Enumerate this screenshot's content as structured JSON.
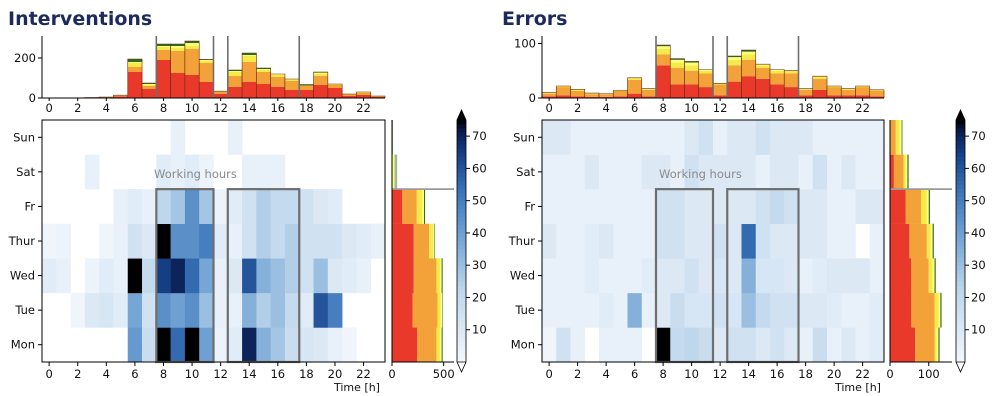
{
  "colors": {
    "stack": [
      "#e8392a",
      "#f3a23a",
      "#f6e94a",
      "#f9ff7a",
      "#2f6a1f"
    ],
    "box": "#6e6e6e",
    "title": "#1c2a5e"
  },
  "chart_data": [
    {
      "type": "heatmap",
      "title": "Interventions",
      "xlabel": "Time [h]",
      "ylabel": "",
      "days": [
        "Mon",
        "Tue",
        "Wed",
        "Thur",
        "Fr",
        "Sat",
        "Sun"
      ],
      "hours": [
        0,
        1,
        2,
        3,
        4,
        5,
        6,
        7,
        8,
        9,
        10,
        11,
        12,
        13,
        14,
        15,
        16,
        17,
        18,
        19,
        20,
        21,
        22,
        23
      ],
      "x_ticks": [
        0,
        2,
        4,
        6,
        8,
        10,
        12,
        14,
        16,
        18,
        20,
        22
      ],
      "heat": [
        [
          0,
          0,
          0,
          0,
          0,
          0,
          42,
          18,
          90,
          55,
          90,
          40,
          3,
          8,
          70,
          35,
          28,
          18,
          12,
          10,
          5,
          2,
          0,
          0
        ],
        [
          0,
          0,
          2,
          10,
          12,
          8,
          38,
          15,
          45,
          40,
          45,
          30,
          5,
          5,
          35,
          25,
          30,
          20,
          8,
          60,
          50,
          0,
          0,
          0
        ],
        [
          8,
          5,
          0,
          3,
          8,
          5,
          85,
          20,
          65,
          70,
          55,
          38,
          5,
          10,
          60,
          35,
          30,
          25,
          15,
          30,
          10,
          8,
          5,
          0
        ],
        [
          2,
          3,
          0,
          0,
          2,
          5,
          15,
          10,
          90,
          45,
          45,
          50,
          8,
          5,
          15,
          25,
          20,
          25,
          15,
          15,
          15,
          10,
          8,
          5
        ],
        [
          0,
          0,
          0,
          0,
          0,
          5,
          8,
          5,
          22,
          28,
          45,
          28,
          3,
          8,
          15,
          25,
          20,
          20,
          15,
          10,
          8,
          0,
          0,
          0
        ],
        [
          0,
          0,
          0,
          5,
          0,
          0,
          0,
          0,
          8,
          5,
          8,
          3,
          0,
          0,
          5,
          5,
          5,
          0,
          0,
          0,
          0,
          0,
          0,
          0
        ],
        [
          0,
          0,
          0,
          0,
          0,
          0,
          0,
          0,
          0,
          5,
          0,
          0,
          0,
          5,
          0,
          0,
          0,
          0,
          0,
          0,
          0,
          0,
          0,
          0
        ]
      ],
      "colorbar": {
        "ticks": [
          10,
          20,
          30,
          40,
          50,
          60,
          70
        ],
        "min": 0,
        "max": 75
      },
      "annotation": "Working hours",
      "working_hours": [
        [
          8,
          12
        ],
        [
          13,
          18
        ]
      ],
      "top_hist": {
        "ylim": [
          0,
          300
        ],
        "ticks": [
          0,
          200
        ],
        "series": [
          [
            0,
            0,
            1,
            2,
            3,
            8,
            130,
            45,
            190,
            125,
            115,
            80,
            20,
            55,
            80,
            70,
            55,
            40,
            40,
            65,
            50,
            10,
            15,
            5
          ],
          [
            0,
            0,
            0,
            0,
            2,
            4,
            25,
            15,
            50,
            110,
            130,
            95,
            10,
            55,
            100,
            60,
            50,
            45,
            20,
            45,
            15,
            10,
            10,
            5
          ],
          [
            0,
            0,
            0,
            0,
            0,
            2,
            20,
            5,
            15,
            15,
            15,
            10,
            2,
            20,
            30,
            10,
            10,
            10,
            2,
            12,
            5,
            0,
            5,
            0
          ],
          [
            0,
            0,
            0,
            0,
            0,
            0,
            5,
            5,
            5,
            10,
            15,
            5,
            0,
            5,
            5,
            5,
            5,
            0,
            0,
            5,
            0,
            0,
            0,
            0
          ],
          [
            0,
            0,
            0,
            0,
            0,
            0,
            15,
            5,
            10,
            10,
            10,
            3,
            2,
            5,
            10,
            5,
            0,
            0,
            5,
            3,
            0,
            0,
            0,
            0
          ]
        ]
      },
      "side_hist": {
        "xlim": [
          0,
          600
        ],
        "ticks": [
          0,
          500
        ],
        "series": [
          [
            245,
            200,
            210,
            210,
            100,
            0,
            0
          ],
          [
            185,
            240,
            220,
            150,
            140,
            0,
            0
          ],
          [
            35,
            30,
            35,
            40,
            50,
            0,
            0
          ],
          [
            15,
            15,
            15,
            10,
            20,
            25,
            5
          ],
          [
            10,
            5,
            10,
            5,
            10,
            0,
            0
          ]
        ],
        "faint_right": [
          0,
          0,
          0,
          0,
          0,
          25,
          5
        ]
      }
    },
    {
      "type": "heatmap",
      "title": "Errors",
      "xlabel": "Time [h]",
      "ylabel": "",
      "days": [
        "Mon",
        "Tue",
        "Wed",
        "Thur",
        "Fr",
        "Sat",
        "Sun"
      ],
      "hours": [
        0,
        1,
        2,
        3,
        4,
        5,
        6,
        7,
        8,
        9,
        10,
        11,
        12,
        13,
        14,
        15,
        16,
        17,
        18,
        19,
        20,
        21,
        22,
        23
      ],
      "x_ticks": [
        0,
        2,
        4,
        6,
        8,
        10,
        12,
        14,
        16,
        18,
        20,
        22
      ],
      "heat": [
        [
          2,
          15,
          5,
          0,
          5,
          5,
          5,
          0,
          75,
          20,
          22,
          18,
          10,
          15,
          15,
          10,
          15,
          10,
          5,
          18,
          5,
          10,
          5,
          8
        ],
        [
          5,
          5,
          5,
          5,
          8,
          5,
          35,
          5,
          10,
          18,
          12,
          12,
          15,
          12,
          30,
          20,
          15,
          15,
          10,
          10,
          8,
          5,
          5,
          8
        ],
        [
          5,
          5,
          5,
          8,
          5,
          5,
          5,
          8,
          10,
          10,
          15,
          10,
          12,
          10,
          35,
          12,
          12,
          10,
          5,
          8,
          10,
          10,
          10,
          5
        ],
        [
          10,
          5,
          5,
          8,
          10,
          5,
          5,
          5,
          15,
          15,
          10,
          10,
          15,
          10,
          55,
          15,
          10,
          10,
          10,
          10,
          5,
          5,
          0,
          5
        ],
        [
          5,
          5,
          5,
          5,
          5,
          5,
          5,
          5,
          15,
          15,
          10,
          10,
          10,
          10,
          10,
          15,
          20,
          15,
          10,
          10,
          5,
          5,
          10,
          10
        ],
        [
          5,
          5,
          5,
          10,
          5,
          5,
          5,
          10,
          10,
          5,
          15,
          10,
          10,
          10,
          10,
          5,
          10,
          10,
          5,
          15,
          5,
          10,
          5,
          5
        ],
        [
          10,
          10,
          5,
          5,
          5,
          5,
          5,
          5,
          5,
          5,
          10,
          15,
          5,
          10,
          10,
          15,
          10,
          10,
          10,
          5,
          5,
          5,
          5,
          5
        ]
      ],
      "colorbar": {
        "ticks": [
          10,
          20,
          30,
          40,
          50,
          60,
          70
        ],
        "min": 0,
        "max": 75
      },
      "annotation": "Working hours",
      "working_hours": [
        [
          8,
          12
        ],
        [
          13,
          18
        ]
      ],
      "top_hist": {
        "ylim": [
          0,
          110
        ],
        "ticks": [
          0,
          100
        ],
        "series": [
          [
            3,
            5,
            3,
            2,
            2,
            3,
            8,
            3,
            60,
            25,
            25,
            20,
            5,
            30,
            40,
            35,
            25,
            20,
            5,
            15,
            5,
            5,
            5,
            3
          ],
          [
            5,
            15,
            10,
            5,
            5,
            10,
            25,
            12,
            20,
            30,
            25,
            25,
            20,
            30,
            30,
            20,
            20,
            25,
            10,
            20,
            15,
            10,
            15,
            10
          ],
          [
            2,
            2,
            3,
            2,
            1,
            1,
            3,
            2,
            10,
            10,
            10,
            5,
            2,
            10,
            10,
            5,
            5,
            5,
            2,
            5,
            2,
            2,
            2,
            2
          ],
          [
            0,
            0,
            0,
            0,
            0,
            0,
            1,
            0,
            5,
            5,
            5,
            2,
            0,
            5,
            5,
            2,
            2,
            0,
            0,
            0,
            0,
            0,
            0,
            0
          ],
          [
            0,
            0,
            0,
            0,
            0,
            0,
            0,
            0,
            2,
            2,
            2,
            0,
            0,
            2,
            3,
            0,
            0,
            0,
            0,
            0,
            0,
            0,
            0,
            0
          ]
        ]
      },
      "side_hist": {
        "xlim": [
          0,
          160
        ],
        "ticks": [
          0,
          100
        ],
        "series": [
          [
            65,
            55,
            55,
            50,
            40,
            10,
            0
          ],
          [
            50,
            60,
            45,
            45,
            40,
            25,
            15
          ],
          [
            5,
            10,
            10,
            10,
            15,
            5,
            10
          ],
          [
            5,
            5,
            5,
            5,
            5,
            5,
            5
          ],
          [
            3,
            3,
            3,
            3,
            3,
            3,
            2
          ]
        ],
        "faint_right": [
          0,
          0,
          0,
          0,
          0,
          0,
          0
        ]
      }
    }
  ]
}
